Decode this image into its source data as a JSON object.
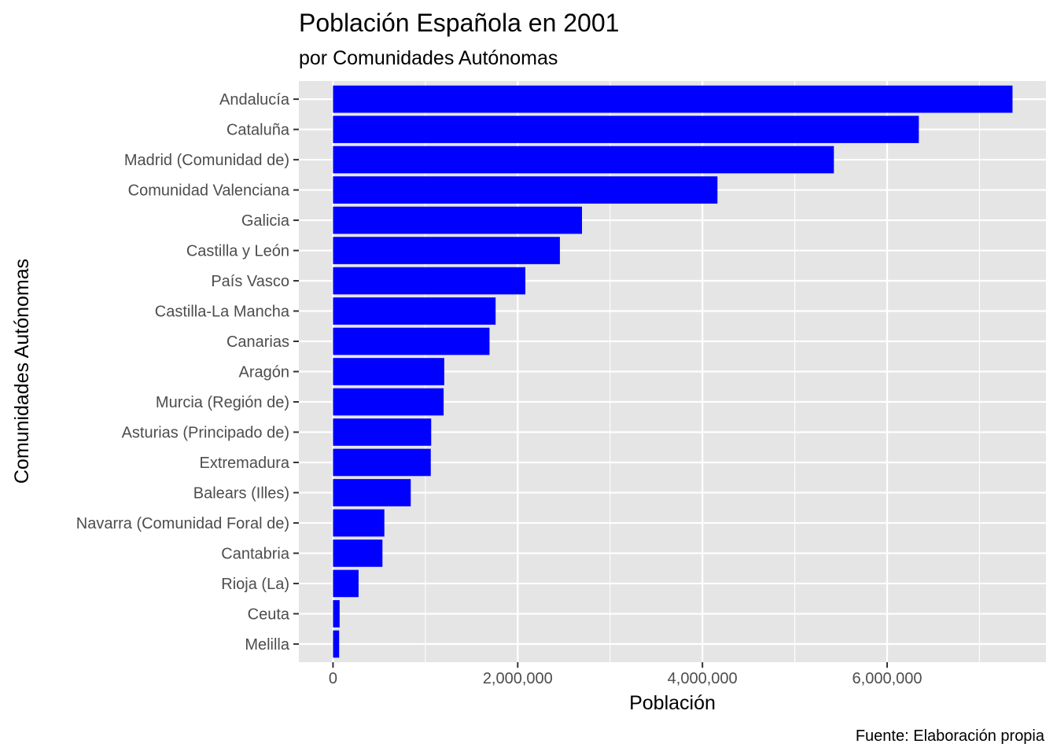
{
  "chart_data": {
    "type": "bar",
    "orientation": "horizontal",
    "title": "Población Española en 2001",
    "subtitle": "por Comunidades Autónomas",
    "xlabel": "Población",
    "ylabel": "Comunidades Autónomas",
    "caption": "Fuente: Elaboración propia",
    "bar_color": "#0000ff",
    "panel_background": "#e5e5e5",
    "grid": true,
    "xlim": [
      -370000,
      7720000
    ],
    "x_ticks": [
      0,
      2000000,
      4000000,
      6000000
    ],
    "x_tick_labels": [
      "0",
      "2,000,000",
      "4,000,000",
      "6,000,000"
    ],
    "categories": [
      "Andalucía",
      "Cataluña",
      "Madrid (Comunidad de)",
      "Comunidad Valenciana",
      "Galicia",
      "Castilla y León",
      "País Vasco",
      "Castilla-La Mancha",
      "Canarias",
      "Aragón",
      "Murcia (Región de)",
      "Asturias (Principado de)",
      "Extremadura",
      "Balears (Illes)",
      "Navarra (Comunidad Foral de)",
      "Cantabria",
      "Rioja (La)",
      "Ceuta",
      "Melilla"
    ],
    "values": [
      7357558,
      6343110,
      5423384,
      4162776,
      2695880,
      2456474,
      2082587,
      1760516,
      1694477,
      1204215,
      1197646,
      1062998,
      1058503,
      841669,
      555829,
      535131,
      276702,
      71505,
      66411
    ]
  }
}
